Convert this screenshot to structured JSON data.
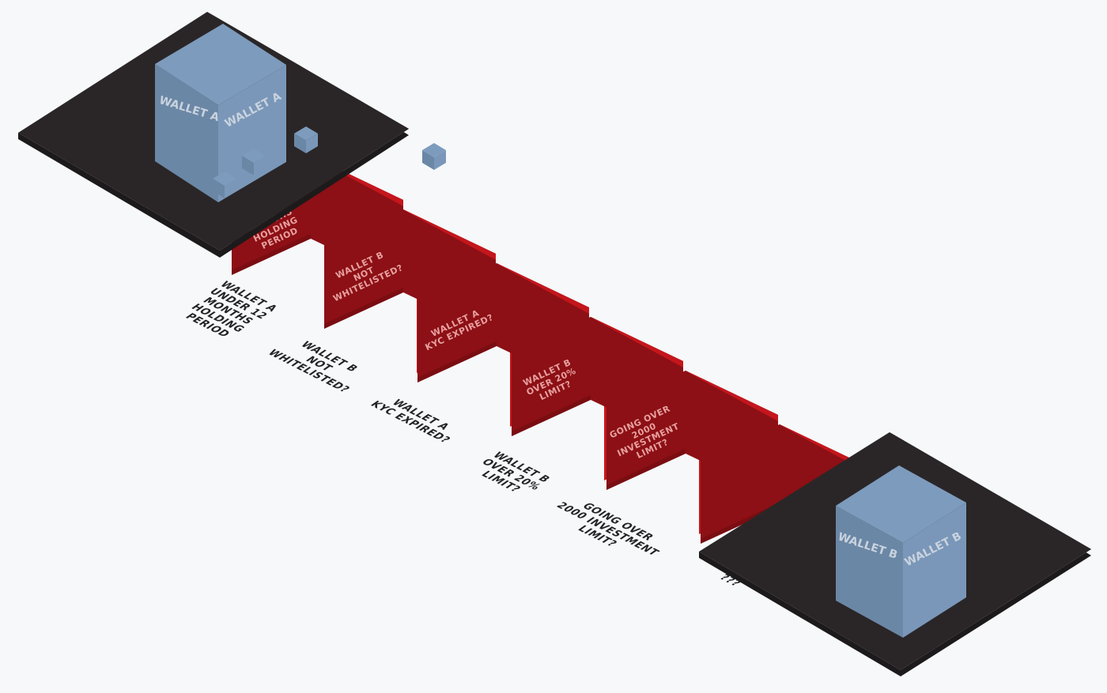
{
  "colors": {
    "background": "#f6f8fa",
    "platform": "#2a2627",
    "cube_top": "#7d9bbd",
    "cube_left": "#6b87a6",
    "cube_right": "#7a97b9",
    "cube_label": "#c9d3de",
    "gate_bright": "#c4161c",
    "gate_dark": "#8c1015",
    "gate_text": "#e8a0a0",
    "label_text": "#222222"
  },
  "wallet_a": {
    "left_label": "WALLET A",
    "right_label": "WALLET A"
  },
  "wallet_b": {
    "left_label": "WALLET B",
    "right_label": "WALLET B"
  },
  "gates": [
    {
      "name": "holding-period",
      "face_lines": [
        "WALLET A",
        "UNDER 12",
        "MONTHS",
        "HOLDING",
        "PERIOD"
      ],
      "caption_lines": [
        "WALLET A",
        "UNDER 12",
        "MONTHS",
        "HOLDING",
        "PERIOD"
      ]
    },
    {
      "name": "whitelist",
      "face_lines": [
        "WALLET B",
        "NOT",
        "WHITELISTED?"
      ],
      "caption_lines": [
        "WALLET B",
        "NOT",
        "WHITELISTED?"
      ]
    },
    {
      "name": "kyc",
      "face_lines": [
        "WALLET A",
        "KYC EXPIRED?"
      ],
      "caption_lines": [
        "WALLET A",
        "KYC EXPIRED?"
      ]
    },
    {
      "name": "ownership-limit",
      "face_lines": [
        "WALLET B",
        "OVER 20%",
        "LIMIT?"
      ],
      "caption_lines": [
        "WALLET B",
        "OVER 20%",
        "LIMIT?"
      ]
    },
    {
      "name": "investment-limit",
      "face_lines": [
        "GOING OVER",
        "2000",
        "INVESTMENT",
        "LIMIT?"
      ],
      "caption_lines": [
        "GOING OVER",
        "2000 INVESTMENT",
        "LIMIT?"
      ]
    },
    {
      "name": "unknown",
      "face_lines": [],
      "caption_lines": [
        "???"
      ]
    }
  ]
}
